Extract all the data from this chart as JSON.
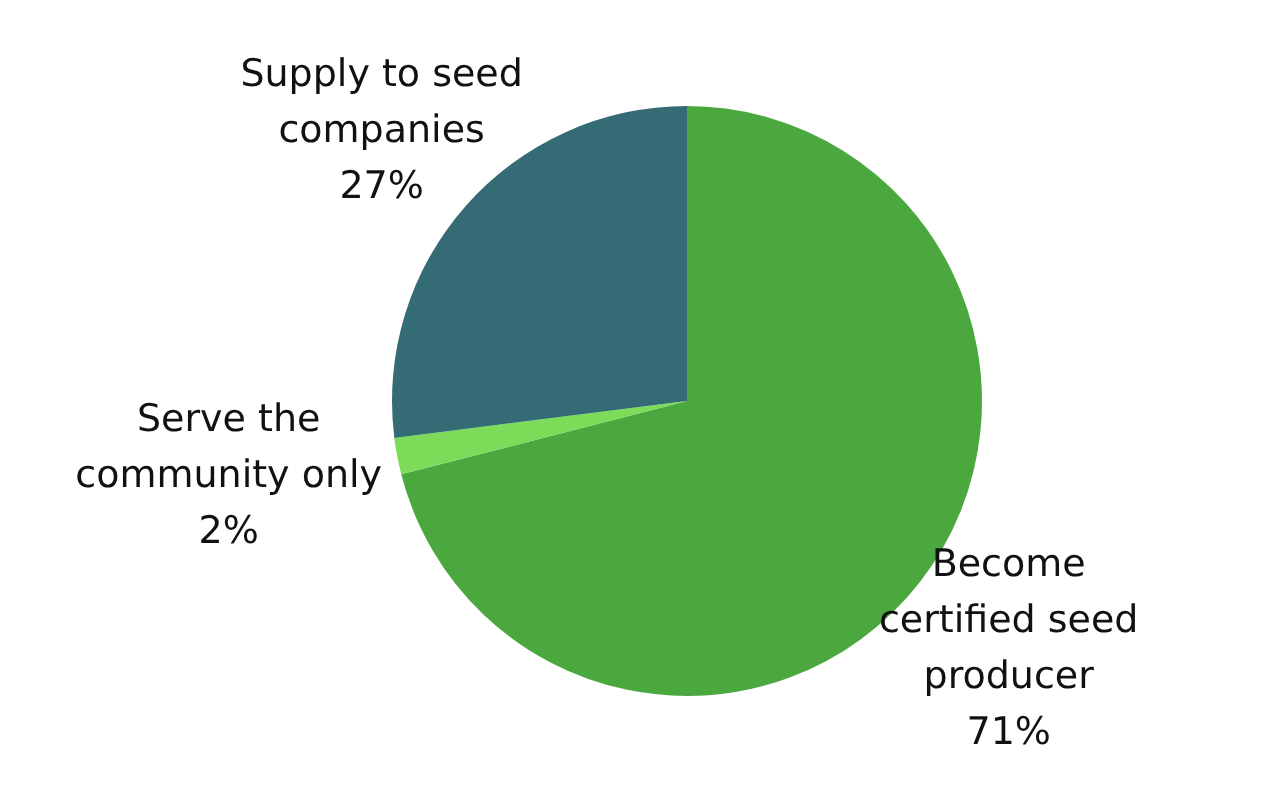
{
  "chart_data": {
    "type": "pie",
    "categories": [
      "Become certified seed producer",
      "Serve the community only",
      "Supply to seed companies"
    ],
    "values": [
      71,
      2,
      27
    ],
    "colors": [
      "#4aa83f",
      "#7ddb5a",
      "#356b74"
    ],
    "value_labels": [
      "71%",
      "2%",
      "27%"
    ],
    "legend": false
  }
}
